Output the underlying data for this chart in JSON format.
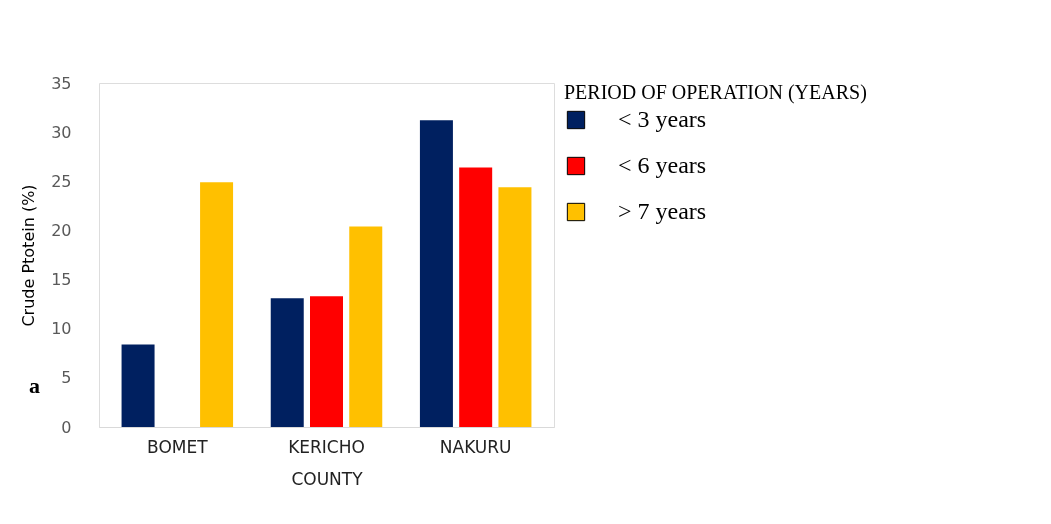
{
  "chart_data": {
    "type": "bar",
    "xlabel": "COUNTY",
    "ylabel": "Crude Ptotein (%)",
    "legend_title": "PERIOD OF OPERATION (YEARS)",
    "legend": "right",
    "grid": false,
    "categories": [
      "BOMET",
      "KERICHO",
      "NAKURU"
    ],
    "series": [
      {
        "name": "< 3 years",
        "color": "#002060",
        "values": [
          8.4,
          13.1,
          31.2
        ]
      },
      {
        "name": "< 6 years",
        "color": "#ff0000",
        "values": [
          null,
          13.3,
          26.4
        ]
      },
      {
        "name": "> 7 years",
        "color": "#ffc000",
        "values": [
          24.9,
          20.4,
          24.4
        ]
      }
    ],
    "ylim": [
      0,
      35
    ],
    "yticks": [
      0,
      5,
      10,
      15,
      20,
      25,
      30,
      35
    ],
    "annotations": [
      "a"
    ]
  }
}
